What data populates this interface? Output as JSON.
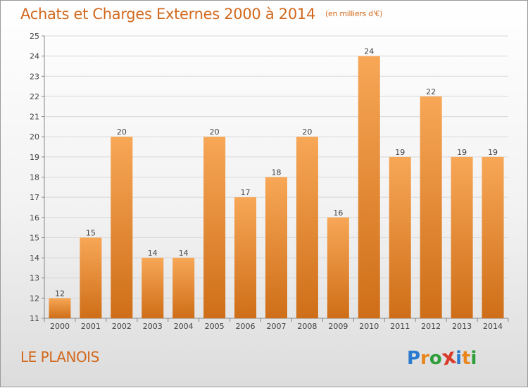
{
  "title": "Achats et Charges Externes 2000 à 2014",
  "unit": "(en milliers d'€)",
  "place": "LE PLANOIS",
  "brand": {
    "letters": [
      "P",
      "r",
      "o",
      "x",
      "i",
      "t",
      "i"
    ],
    "colors": [
      "#2a7bd0",
      "#e8861a",
      "#2e9e3a",
      "#d93a2a",
      "#2a7bd0",
      "#e8861a",
      "#2e9e3a"
    ]
  },
  "colors": {
    "bar_top": "#f7a756",
    "bar_bottom": "#cf6e18",
    "accent_text": "#d2691e",
    "grid": "#d8d8d8"
  },
  "chart_data": {
    "type": "bar",
    "categories": [
      "2000",
      "2001",
      "2002",
      "2003",
      "2004",
      "2005",
      "2006",
      "2007",
      "2008",
      "2009",
      "2010",
      "2011",
      "2012",
      "2013",
      "2014"
    ],
    "values": [
      12,
      15,
      20,
      14,
      14,
      20,
      17,
      18,
      20,
      16,
      24,
      19,
      22,
      19,
      19
    ],
    "data_labels": [
      "12",
      "15",
      "20",
      "14",
      "14",
      "20",
      "17",
      "18",
      "20",
      "16",
      "24",
      "19",
      "22",
      "19",
      "19"
    ],
    "y_ticks": [
      "11",
      "12",
      "13",
      "14",
      "15",
      "16",
      "17",
      "18",
      "19",
      "20",
      "21",
      "22",
      "23",
      "24",
      "25"
    ],
    "ylim": [
      11,
      25
    ],
    "grid": true
  }
}
